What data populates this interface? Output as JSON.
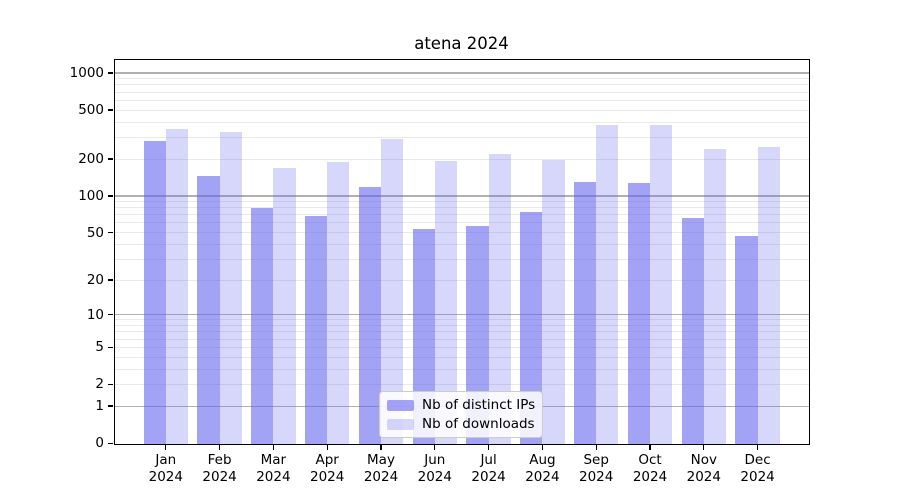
{
  "chart_data": {
    "type": "bar",
    "title": "atena 2024",
    "categories": [
      "Jan 2024",
      "Feb 2024",
      "Mar 2024",
      "Apr 2024",
      "May 2024",
      "Jun 2024",
      "Jul 2024",
      "Aug 2024",
      "Sep 2024",
      "Oct 2024",
      "Nov 2024",
      "Dec 2024"
    ],
    "series": [
      {
        "name": "Nb of distinct IPs",
        "color": "rgba(96,96,238,0.58)",
        "values": [
          280,
          146,
          79,
          69,
          118,
          54,
          57,
          74,
          131,
          128,
          66,
          47
        ]
      },
      {
        "name": "Nb of downloads",
        "color": "rgba(96,96,238,0.25)",
        "values": [
          351,
          332,
          169,
          190,
          291,
          193,
          219,
          195,
          379,
          381,
          240,
          252
        ]
      }
    ],
    "xlabel": "",
    "ylabel": "",
    "y_axis": {
      "scale": "log10(1+value)",
      "ticks": [
        1000,
        500,
        200,
        100,
        50,
        20,
        10,
        5,
        2,
        1,
        0
      ],
      "major_gridlines": [
        1,
        10,
        100,
        1000
      ],
      "minor_gridlines": [
        2,
        3,
        4,
        5,
        6,
        7,
        8,
        9,
        20,
        30,
        40,
        50,
        60,
        70,
        80,
        90,
        200,
        300,
        400,
        500,
        600,
        700,
        800,
        900
      ],
      "ylim": [
        0,
        1294
      ]
    },
    "legend_position": "lower center",
    "grid": true,
    "colors": {
      "bar_base": "#6060ee",
      "major_grid": "#b0b0b0",
      "minor_grid": "#e9e9e9",
      "frame": "#000000",
      "text": "#000000",
      "background": "#ffffff"
    }
  }
}
